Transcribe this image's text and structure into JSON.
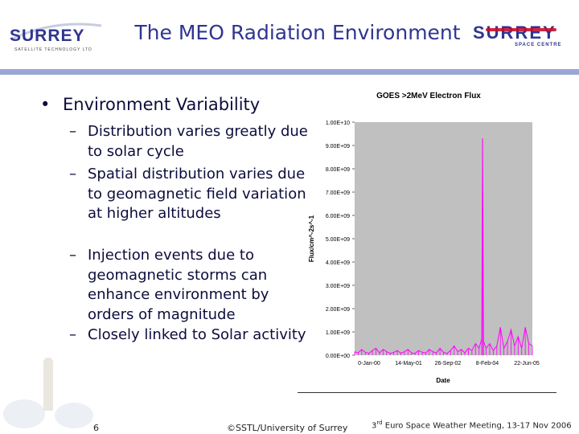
{
  "slide": {
    "title": "The MEO Radiation Environment",
    "page_number": "6",
    "copyright": "©SSTL/University of Surrey",
    "conference_prefix": "3",
    "conference_sup": "rd",
    "conference_rest": " Euro Space Weather Meeting, 13-17 Nov 2006"
  },
  "logos": {
    "left_wordmark": "SURREY",
    "left_tagline": "SATELLITE TECHNOLOGY LTD",
    "right_wordmark": "SURREY",
    "right_tagline": "SPACE CENTRE"
  },
  "bullets": {
    "main_marker": "•",
    "main": "Environment Variability",
    "sub_marker": "–",
    "subs": [
      "Distribution varies greatly due to solar cycle",
      "Spatial distribution varies due to geomagnetic field variation at higher altitudes",
      "Injection events due to geomagnetic storms can enhance environment by orders of magnitude",
      "Closely linked to Solar activity"
    ]
  },
  "chart_data": {
    "type": "line",
    "title": "GOES >2MeV Electron Flux",
    "xlabel": "Date",
    "ylabel": "Flux/cm^-2s^-1",
    "ylim": [
      0,
      10000000000
    ],
    "y_ticks": [
      "0.00E+00",
      "1.00E+09",
      "2.00E+09",
      "3.00E+09",
      "4.00E+09",
      "5.00E+09",
      "6.00E+09",
      "7.00E+09",
      "8.00E+09",
      "9.00E+09",
      "1.00E+10"
    ],
    "x_ticks": [
      "0-Jan-00",
      "14-May-01",
      "26-Sep-02",
      "8-Feb-04",
      "22-Jun-05"
    ],
    "plot_background": "#c0c0c0",
    "series_color": "#ff00ff",
    "series": [
      {
        "x": [
          0.0,
          0.02,
          0.04,
          0.06,
          0.08,
          0.1,
          0.12,
          0.14,
          0.16,
          0.18,
          0.2,
          0.22,
          0.24,
          0.26,
          0.28,
          0.3,
          0.32,
          0.34,
          0.36,
          0.38,
          0.4,
          0.42,
          0.44,
          0.46,
          0.48,
          0.5,
          0.52,
          0.54,
          0.56,
          0.58,
          0.6,
          0.62,
          0.64,
          0.66,
          0.68,
          0.7,
          0.715,
          0.72,
          0.725,
          0.74,
          0.76,
          0.78,
          0.8,
          0.82,
          0.84,
          0.86,
          0.88,
          0.9,
          0.92,
          0.94,
          0.96,
          0.98,
          1.0
        ],
        "values": [
          150000000,
          100000000,
          250000000,
          120000000,
          80000000,
          200000000,
          300000000,
          100000000,
          250000000,
          150000000,
          80000000,
          120000000,
          200000000,
          90000000,
          150000000,
          250000000,
          100000000,
          80000000,
          200000000,
          130000000,
          90000000,
          250000000,
          150000000,
          100000000,
          300000000,
          120000000,
          80000000,
          200000000,
          400000000,
          150000000,
          250000000,
          100000000,
          300000000,
          200000000,
          500000000,
          300000000,
          700000000,
          9300000000,
          600000000,
          300000000,
          500000000,
          200000000,
          400000000,
          1200000000,
          300000000,
          600000000,
          1100000000,
          400000000,
          800000000,
          300000000,
          1200000000,
          500000000,
          400000000
        ]
      }
    ]
  }
}
